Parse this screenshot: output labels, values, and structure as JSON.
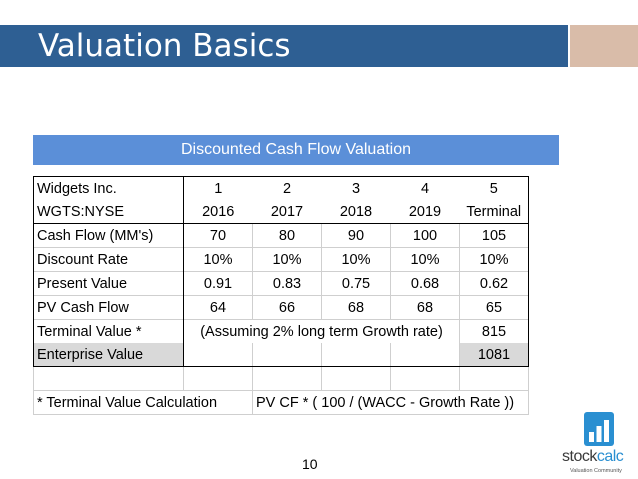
{
  "slide": {
    "title": "Valuation Basics",
    "page_number": "10"
  },
  "banner": {
    "title": "Discounted Cash Flow Valuation"
  },
  "table": {
    "company": "Widgets Inc.",
    "ticker": "WGTS:NYSE",
    "periods": [
      "1",
      "2",
      "3",
      "4",
      "5"
    ],
    "years": [
      "2016",
      "2017",
      "2018",
      "2019",
      "Terminal"
    ],
    "rows": [
      {
        "label": "Cash Flow (MM's)",
        "values": [
          "70",
          "80",
          "90",
          "100",
          "105"
        ]
      },
      {
        "label": "Discount Rate",
        "values": [
          "10%",
          "10%",
          "10%",
          "10%",
          "10%"
        ]
      },
      {
        "label": "Present Value",
        "values": [
          "0.91",
          "0.83",
          "0.75",
          "0.68",
          "0.62"
        ]
      },
      {
        "label": "PV Cash Flow",
        "values": [
          "64",
          "66",
          "68",
          "68",
          "65"
        ]
      }
    ],
    "terminal_value": {
      "label": "Terminal Value *",
      "note": "(Assuming 2% long term Growth rate)",
      "value": "815"
    },
    "enterprise_value": {
      "label": "Enterprise Value",
      "value": "1081"
    },
    "footnote": {
      "label": "* Terminal Value Calculation",
      "formula": "PV CF * ( 100 / (WACC - Growth Rate ))"
    }
  },
  "logo": {
    "name_prefix": "stock",
    "name_suffix": "calc",
    "tagline": "Valuation Community"
  }
}
